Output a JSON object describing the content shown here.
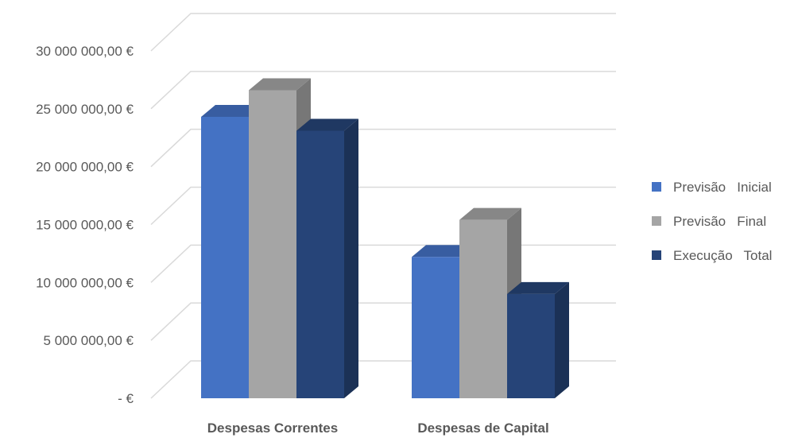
{
  "chart_data": {
    "type": "bar",
    "three_d": true,
    "categories": [
      "Despesas Correntes",
      "Despesas de Capital"
    ],
    "series": [
      {
        "name": "Previsão   Inicial",
        "values": [
          24300000,
          12200000
        ],
        "color": "#4472C4"
      },
      {
        "name": "Previsão   Final",
        "values": [
          26600000,
          15400000
        ],
        "color": "#A5A5A5"
      },
      {
        "name": "Execução   Total",
        "values": [
          23100000,
          9000000
        ],
        "color": "#264478"
      }
    ],
    "ylim": [
      0,
      30000000
    ],
    "yticks": [
      0,
      5000000,
      10000000,
      15000000,
      20000000,
      25000000,
      30000000
    ],
    "ytick_labels": [
      "-  €",
      "5 000 000,00 €",
      "10 000 000,00 €",
      "15 000 000,00 €",
      "20 000 000,00 €",
      "25 000 000,00 €",
      "30 000 000,00 €"
    ],
    "grid": true,
    "legend_position": "right",
    "title": "",
    "xlabel": "",
    "ylabel": ""
  }
}
